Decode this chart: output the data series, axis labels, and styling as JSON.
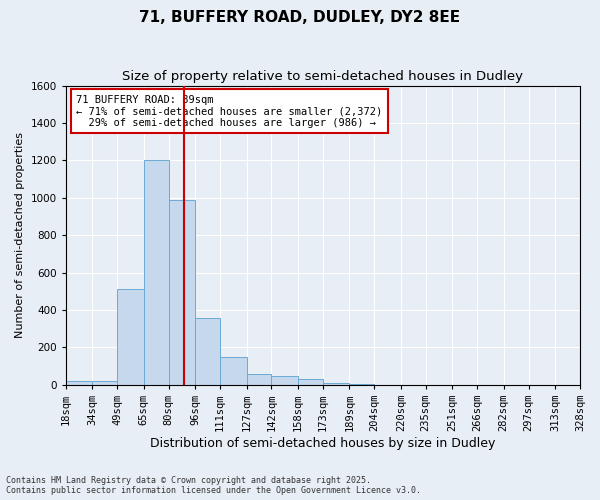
{
  "title": "71, BUFFERY ROAD, DUDLEY, DY2 8EE",
  "subtitle": "Size of property relative to semi-detached houses in Dudley",
  "xlabel": "Distribution of semi-detached houses by size in Dudley",
  "ylabel": "Number of semi-detached properties",
  "bin_labels": [
    "18sqm",
    "34sqm",
    "49sqm",
    "65sqm",
    "80sqm",
    "96sqm",
    "111sqm",
    "127sqm",
    "142sqm",
    "158sqm",
    "173sqm",
    "189sqm",
    "204sqm",
    "220sqm",
    "235sqm",
    "251sqm",
    "266sqm",
    "282sqm",
    "297sqm",
    "313sqm",
    "328sqm"
  ],
  "bin_edges": [
    18,
    34,
    49,
    65,
    80,
    96,
    111,
    127,
    142,
    158,
    173,
    189,
    204,
    220,
    235,
    251,
    266,
    282,
    297,
    313,
    328
  ],
  "values": [
    20,
    20,
    510,
    1200,
    990,
    360,
    150,
    60,
    45,
    30,
    10,
    5,
    2,
    1,
    0,
    0,
    0,
    0,
    0,
    0
  ],
  "bar_color": "#c5d8ed",
  "bar_edge_color": "#6aaad4",
  "property_size": 89,
  "property_line_color": "#cc0000",
  "annotation_text": "71 BUFFERY ROAD: 89sqm\n← 71% of semi-detached houses are smaller (2,372)\n  29% of semi-detached houses are larger (986) →",
  "annotation_box_color": "#ffffff",
  "annotation_box_edge_color": "#cc0000",
  "ylim": [
    0,
    1600
  ],
  "yticks": [
    0,
    200,
    400,
    600,
    800,
    1000,
    1200,
    1400,
    1600
  ],
  "background_color": "#e8eef5",
  "grid_color": "#ffffff",
  "footer_text": "Contains HM Land Registry data © Crown copyright and database right 2025.\nContains public sector information licensed under the Open Government Licence v3.0.",
  "title_fontsize": 11,
  "subtitle_fontsize": 9.5,
  "xlabel_fontsize": 9,
  "ylabel_fontsize": 8,
  "tick_fontsize": 7.5
}
